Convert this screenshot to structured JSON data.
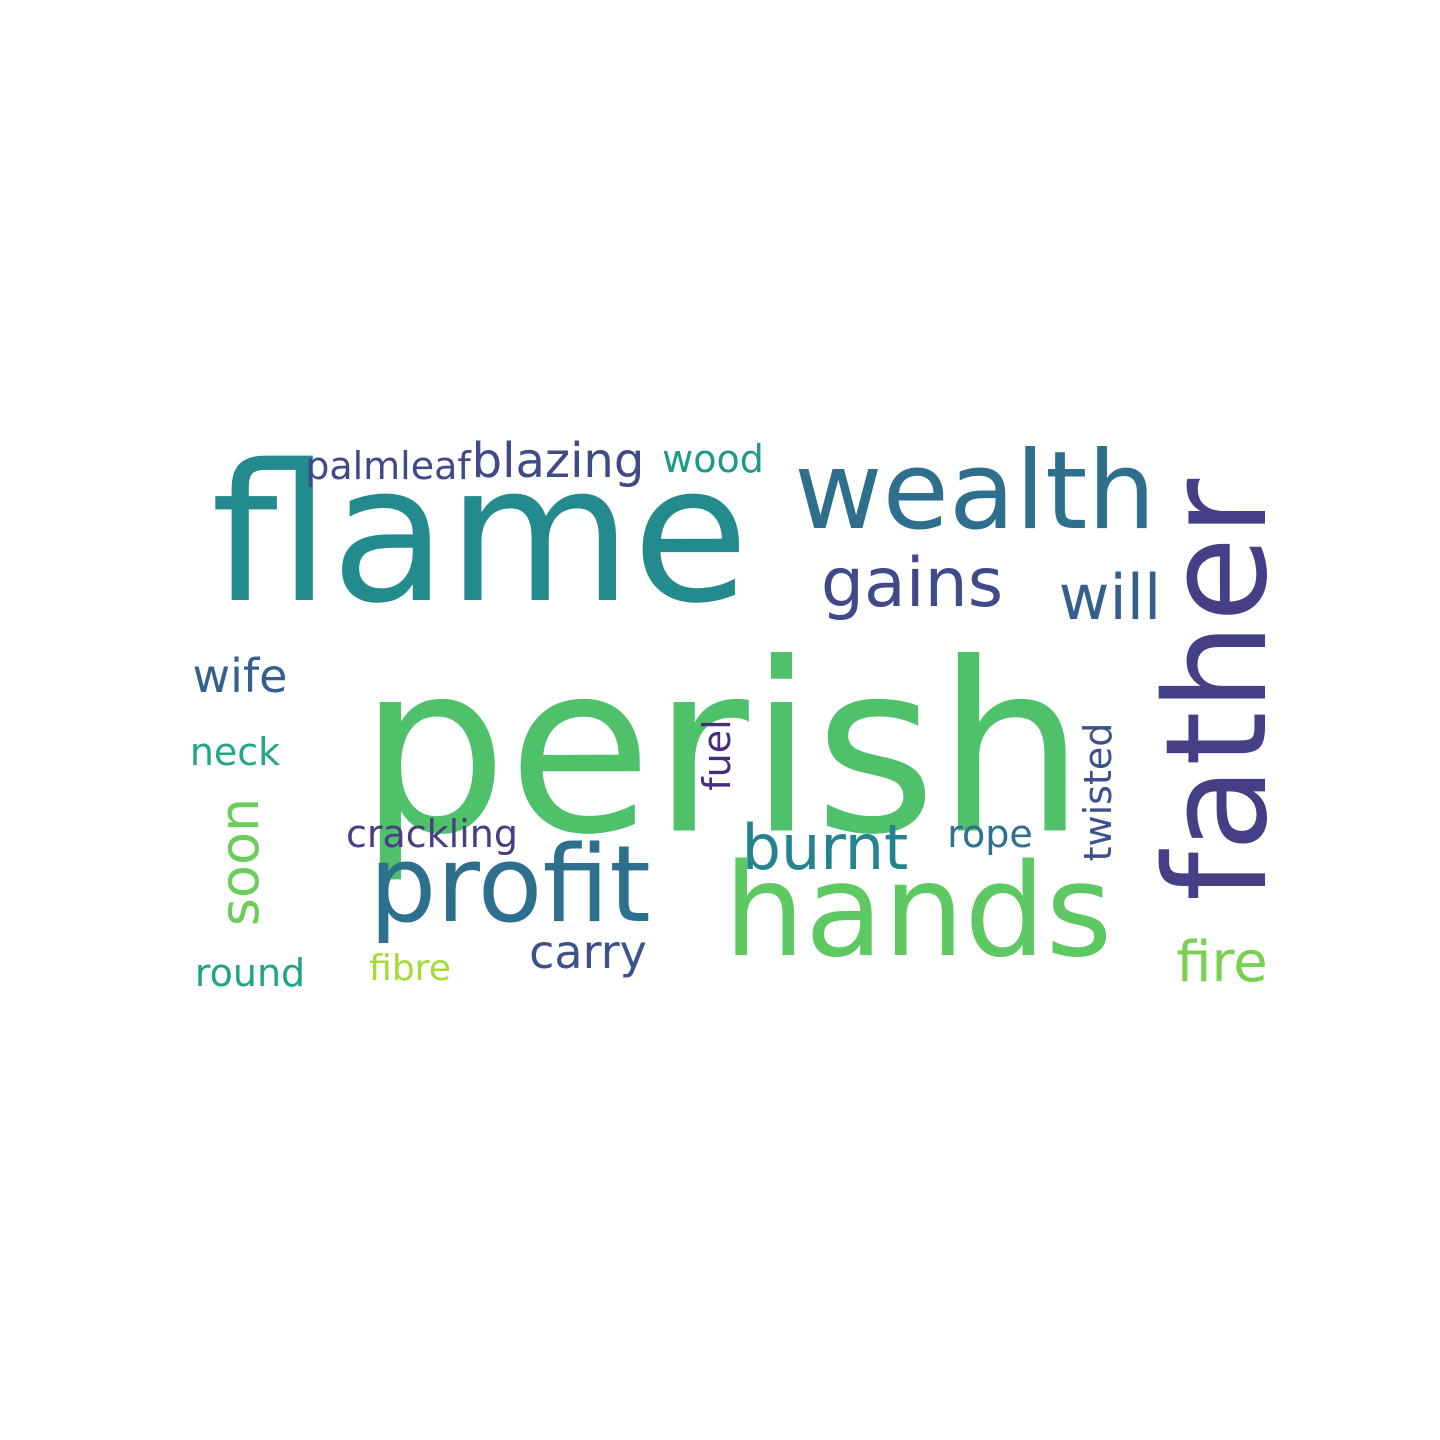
{
  "words": {
    "flame": {
      "text": "flame",
      "color": "#238a8d"
    },
    "perish": {
      "text": "perish",
      "color": "#4fc16b"
    },
    "wealth": {
      "text": "wealth",
      "color": "#2e6f8e"
    },
    "father": {
      "text": "father",
      "color": "#453f85"
    },
    "hands": {
      "text": "hands",
      "color": "#5ec962"
    },
    "profit": {
      "text": "profit",
      "color": "#2e6f8e"
    },
    "gains": {
      "text": "gains",
      "color": "#404a88"
    },
    "will": {
      "text": "will",
      "color": "#355f8d"
    },
    "burnt": {
      "text": "burnt",
      "color": "#23848e"
    },
    "blazing": {
      "text": "blazing",
      "color": "#404a88"
    },
    "palmleaf": {
      "text": "palmleaf",
      "color": "#404a88"
    },
    "wood": {
      "text": "wood",
      "color": "#1f9a8a"
    },
    "wife": {
      "text": "wife",
      "color": "#355f8d"
    },
    "neck": {
      "text": "neck",
      "color": "#22a884"
    },
    "soon": {
      "text": "soon",
      "color": "#6ccd5a"
    },
    "fuel": {
      "text": "fuel",
      "color": "#472d7b"
    },
    "twisted": {
      "text": "twisted",
      "color": "#3b528b"
    },
    "crackling": {
      "text": "crackling",
      "color": "#453f85"
    },
    "rope": {
      "text": "rope",
      "color": "#2c728e"
    },
    "carry": {
      "text": "carry",
      "color": "#3b528b"
    },
    "fire": {
      "text": "fire",
      "color": "#7ad151"
    },
    "round": {
      "text": "round",
      "color": "#20a486"
    },
    "fibre": {
      "text": "fibre",
      "color": "#a5db36"
    }
  }
}
